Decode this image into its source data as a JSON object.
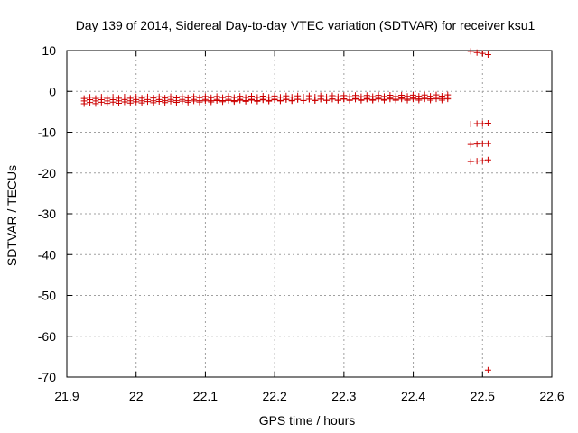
{
  "chart_data": {
    "type": "scatter",
    "title": "Day 139 of 2014, Sidereal Day-to-day VTEC variation (SDTVAR) for receiver ksu1",
    "xlabel": "GPS time / hours",
    "ylabel": "SDTVAR / TECUs",
    "xlim": [
      21.9,
      22.6
    ],
    "ylim": [
      -70,
      10
    ],
    "xticks": [
      21.9,
      22,
      22.1,
      22.2,
      22.3,
      22.4,
      22.5,
      22.6
    ],
    "xtick_labels": [
      "21.9",
      "22",
      "22.1",
      "22.2",
      "22.3",
      "22.4",
      "22.5",
      "22.6"
    ],
    "yticks": [
      10,
      0,
      -10,
      -20,
      -30,
      -40,
      -50,
      -60,
      -70
    ],
    "ytick_labels": [
      "10",
      "0",
      "-10",
      "-20",
      "-30",
      "-40",
      "-50",
      "-60",
      "-70"
    ],
    "grid": true,
    "marker": "+",
    "color": "#cc0000",
    "series": [
      {
        "name": "dense-track",
        "x_start": 21.925,
        "x_end": 22.45,
        "x_step": 0.00833,
        "bands": [
          {
            "start": -1.6,
            "end": -1.0
          },
          {
            "start": -2.2,
            "end": -2.0
          },
          {
            "start": -2.9,
            "end": -1.6
          }
        ]
      },
      {
        "name": "late-cluster",
        "x": [
          22.483,
          22.492,
          22.5,
          22.508,
          22.483,
          22.492,
          22.5,
          22.508,
          22.483,
          22.492,
          22.5,
          22.508,
          22.483,
          22.492,
          22.5,
          22.508
        ],
        "y": [
          9.8,
          9.5,
          9.3,
          9.0,
          -8.0,
          -7.9,
          -7.9,
          -7.8,
          -13.0,
          -12.9,
          -12.8,
          -12.8,
          -17.2,
          -17.1,
          -17.0,
          -16.8
        ]
      },
      {
        "name": "outlier",
        "x": [
          22.508
        ],
        "y": [
          -68.3
        ]
      }
    ]
  }
}
